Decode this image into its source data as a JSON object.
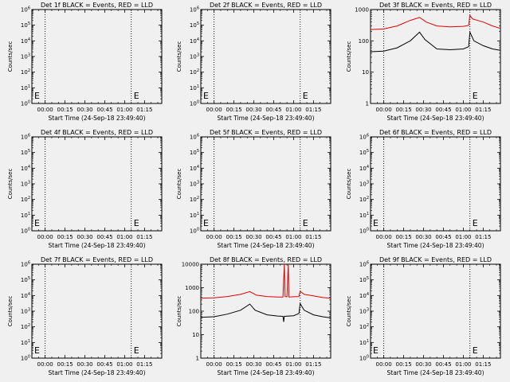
{
  "chart_data": [
    {
      "type": "line",
      "title": "Det 1f BLACK = Events, RED = LLD",
      "xlabel": "Start Time (24-Sep-18 23:49:40)",
      "ylabel": "Counts/sec",
      "x_ticks": [
        "00:00",
        "00:15",
        "00:30",
        "00:45",
        "01:00",
        "01:15"
      ],
      "xlim": [
        -10,
        88
      ],
      "y_scale": "log",
      "ylim": [
        1,
        1000000
      ],
      "y_ticks": [
        "10^0",
        "10^1",
        "10^2",
        "10^3",
        "10^4",
        "10^5",
        "10^6"
      ],
      "vlines": [
        0,
        65
      ],
      "markers": [
        {
          "x": -10,
          "label": "E"
        },
        {
          "x": 65,
          "label": "E"
        }
      ],
      "series": []
    },
    {
      "type": "line",
      "title": "Det 2f BLACK = Events, RED = LLD",
      "xlabel": "Start Time (24-Sep-18 23:49:40)",
      "ylabel": "Counts/sec",
      "x_ticks": [
        "00:00",
        "00:15",
        "00:30",
        "00:45",
        "01:00",
        "01:15"
      ],
      "xlim": [
        -10,
        88
      ],
      "y_scale": "log",
      "ylim": [
        1,
        1000000
      ],
      "y_ticks": [
        "10^0",
        "10^1",
        "10^2",
        "10^3",
        "10^4",
        "10^5",
        "10^6"
      ],
      "vlines": [
        0,
        65
      ],
      "markers": [
        {
          "x": -10,
          "label": "E"
        },
        {
          "x": 65,
          "label": "E"
        }
      ],
      "series": []
    },
    {
      "type": "line",
      "title": "Det 3f BLACK = Events, RED = LLD",
      "xlabel": "Start Time (24-Sep-18 23:49:40)",
      "ylabel": "Counts/sec",
      "x_ticks": [
        "00:00",
        "00:15",
        "00:30",
        "00:45",
        "01:00",
        "01:15"
      ],
      "xlim": [
        -10,
        88
      ],
      "y_scale": "log",
      "ylim": [
        1,
        1000
      ],
      "y_ticks": [
        "1",
        "10",
        "100",
        "1000"
      ],
      "vlines": [
        0,
        65
      ],
      "markers": [
        {
          "x": 65,
          "label": "E"
        }
      ],
      "series": [
        {
          "color": "#e00000",
          "points": [
            [
              -10,
              230
            ],
            [
              0,
              240
            ],
            [
              10,
              300
            ],
            [
              20,
              450
            ],
            [
              27,
              560
            ],
            [
              32,
              400
            ],
            [
              40,
              300
            ],
            [
              50,
              280
            ],
            [
              60,
              290
            ],
            [
              64,
              310
            ],
            [
              65,
              650
            ],
            [
              67,
              500
            ],
            [
              75,
              400
            ],
            [
              82,
              300
            ],
            [
              88,
              250
            ]
          ]
        },
        {
          "color": "#000000",
          "points": [
            [
              -10,
              45
            ],
            [
              0,
              47
            ],
            [
              10,
              60
            ],
            [
              20,
              100
            ],
            [
              27,
              190
            ],
            [
              31,
              110
            ],
            [
              40,
              55
            ],
            [
              50,
              52
            ],
            [
              60,
              55
            ],
            [
              64,
              65
            ],
            [
              65,
              190
            ],
            [
              68,
              100
            ],
            [
              75,
              70
            ],
            [
              82,
              55
            ],
            [
              88,
              50
            ]
          ]
        }
      ]
    },
    {
      "type": "line",
      "title": "Det 4f BLACK = Events, RED = LLD",
      "xlabel": "Start Time (24-Sep-18 23:49:40)",
      "ylabel": "Counts/sec",
      "x_ticks": [
        "00:00",
        "00:15",
        "00:30",
        "00:45",
        "01:00",
        "01:15"
      ],
      "xlim": [
        -10,
        88
      ],
      "y_scale": "log",
      "ylim": [
        1,
        1000000
      ],
      "y_ticks": [
        "10^0",
        "10^1",
        "10^2",
        "10^3",
        "10^4",
        "10^5",
        "10^6"
      ],
      "vlines": [
        0,
        65
      ],
      "markers": [
        {
          "x": -10,
          "label": "E"
        },
        {
          "x": 65,
          "label": "E"
        }
      ],
      "series": []
    },
    {
      "type": "line",
      "title": "Det 5f BLACK = Events, RED = LLD",
      "xlabel": "Start Time (24-Sep-18 23:49:40)",
      "ylabel": "Counts/sec",
      "x_ticks": [
        "00:00",
        "00:15",
        "00:30",
        "00:45",
        "01:00",
        "01:15"
      ],
      "xlim": [
        -10,
        88
      ],
      "y_scale": "log",
      "ylim": [
        1,
        1000000
      ],
      "y_ticks": [
        "10^0",
        "10^1",
        "10^2",
        "10^3",
        "10^4",
        "10^5",
        "10^6"
      ],
      "vlines": [
        0,
        65
      ],
      "markers": [
        {
          "x": -10,
          "label": "E"
        },
        {
          "x": 65,
          "label": "E"
        }
      ],
      "series": []
    },
    {
      "type": "line",
      "title": "Det 6f BLACK = Events, RED = LLD",
      "xlabel": "Start Time (24-Sep-18 23:49:40)",
      "ylabel": "Counts/sec",
      "x_ticks": [
        "00:00",
        "00:15",
        "00:30",
        "00:45",
        "01:00",
        "01:15"
      ],
      "xlim": [
        -10,
        88
      ],
      "y_scale": "log",
      "ylim": [
        1,
        1000000
      ],
      "y_ticks": [
        "10^0",
        "10^1",
        "10^2",
        "10^3",
        "10^4",
        "10^5",
        "10^6"
      ],
      "vlines": [
        0,
        65
      ],
      "markers": [
        {
          "x": -10,
          "label": "E"
        },
        {
          "x": 65,
          "label": "E"
        }
      ],
      "series": []
    },
    {
      "type": "line",
      "title": "Det 7f BLACK = Events, RED = LLD",
      "xlabel": "Start Time (24-Sep-18 23:49:40)",
      "ylabel": "Counts/sec",
      "x_ticks": [
        "00:00",
        "00:15",
        "00:30",
        "00:45",
        "01:00",
        "01:15"
      ],
      "xlim": [
        -10,
        88
      ],
      "y_scale": "log",
      "ylim": [
        1,
        1000000
      ],
      "y_ticks": [
        "10^0",
        "10^1",
        "10^2",
        "10^3",
        "10^4",
        "10^5",
        "10^6"
      ],
      "vlines": [
        0,
        65
      ],
      "markers": [
        {
          "x": -10,
          "label": "E"
        },
        {
          "x": 65,
          "label": "E"
        }
      ],
      "series": []
    },
    {
      "type": "line",
      "title": "Det 8f BLACK = Events, RED = LLD",
      "xlabel": "Start Time (24-Sep-18 23:49:40)",
      "ylabel": "Counts/sec",
      "x_ticks": [
        "00:00",
        "00:15",
        "00:30",
        "00:45",
        "01:00",
        "01:15"
      ],
      "xlim": [
        -10,
        88
      ],
      "y_scale": "log",
      "ylim": [
        1,
        10000
      ],
      "y_ticks": [
        "1",
        "10",
        "100",
        "1000",
        "10000"
      ],
      "vlines": [
        0,
        65
      ],
      "markers": [],
      "series": [
        {
          "color": "#e00000",
          "points": [
            [
              -10,
              360
            ],
            [
              0,
              370
            ],
            [
              10,
              420
            ],
            [
              20,
              520
            ],
            [
              27,
              680
            ],
            [
              32,
              480
            ],
            [
              40,
              420
            ],
            [
              48,
              400
            ],
            [
              52,
              400
            ],
            [
              53,
              10000
            ],
            [
              53.6,
              420
            ],
            [
              55,
              410
            ],
            [
              56,
              10000
            ],
            [
              56.5,
              400
            ],
            [
              60,
              410
            ],
            [
              64,
              420
            ],
            [
              65,
              700
            ],
            [
              68,
              520
            ],
            [
              75,
              450
            ],
            [
              82,
              380
            ],
            [
              88,
              360
            ]
          ]
        },
        {
          "color": "#000000",
          "points": [
            [
              -10,
              55
            ],
            [
              0,
              58
            ],
            [
              10,
              75
            ],
            [
              20,
              110
            ],
            [
              27,
              200
            ],
            [
              31,
              110
            ],
            [
              40,
              70
            ],
            [
              48,
              62
            ],
            [
              52,
              60
            ],
            [
              52.5,
              35
            ],
            [
              53,
              60
            ],
            [
              60,
              64
            ],
            [
              64,
              80
            ],
            [
              65,
              210
            ],
            [
              68,
              110
            ],
            [
              75,
              70
            ],
            [
              82,
              58
            ],
            [
              88,
              52
            ]
          ]
        }
      ]
    },
    {
      "type": "line",
      "title": "Det 9f BLACK = Events, RED = LLD",
      "xlabel": "Start Time (24-Sep-18 23:49:40)",
      "ylabel": "Counts/sec",
      "x_ticks": [
        "00:00",
        "00:15",
        "00:30",
        "00:45",
        "01:00",
        "01:15"
      ],
      "xlim": [
        -10,
        88
      ],
      "y_scale": "log",
      "ylim": [
        1,
        1000000
      ],
      "y_ticks": [
        "10^0",
        "10^1",
        "10^2",
        "10^3",
        "10^4",
        "10^5",
        "10^6"
      ],
      "vlines": [
        0,
        65
      ],
      "markers": [
        {
          "x": -10,
          "label": "E"
        },
        {
          "x": 65,
          "label": "E"
        }
      ],
      "series": []
    }
  ]
}
